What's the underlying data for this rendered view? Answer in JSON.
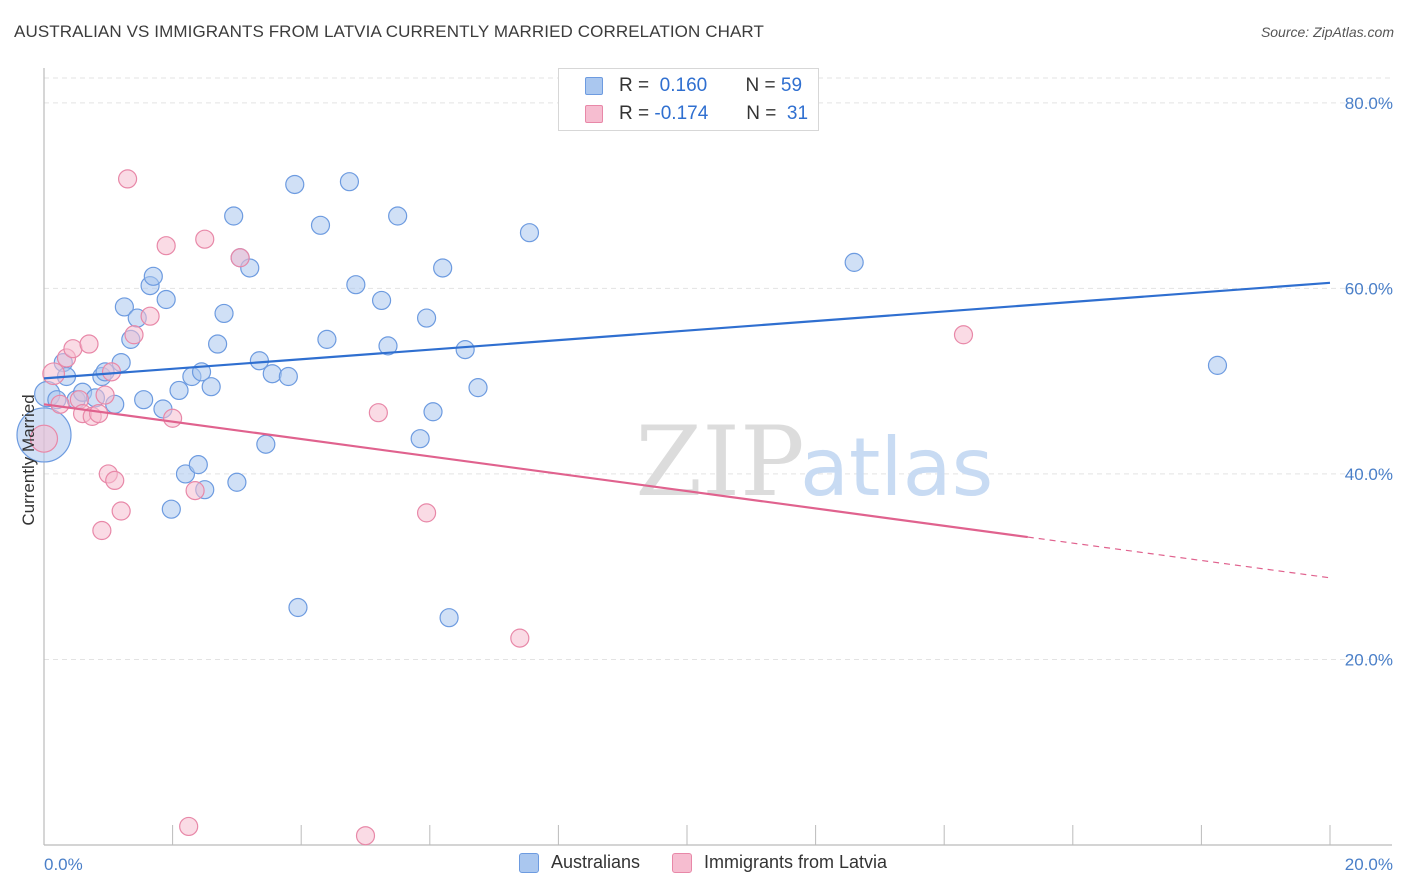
{
  "header": {
    "title": "AUSTRALIAN VS IMMIGRANTS FROM LATVIA CURRENTLY MARRIED CORRELATION CHART",
    "source": "Source: ZipAtlas.com"
  },
  "legend": {
    "series": [
      {
        "r_label": "R =",
        "r_value": "0.160",
        "n_label": "N =",
        "n_value": "59"
      },
      {
        "r_label": "R =",
        "r_value": "-0.174",
        "n_label": "N =",
        "n_value": "31"
      }
    ]
  },
  "bottom_legend": {
    "items": [
      {
        "label": "Australians"
      },
      {
        "label": "Immigrants from Latvia"
      }
    ]
  },
  "watermark": {
    "part1": "ZIP",
    "part2": "atlas"
  },
  "colors": {
    "blue_fill": "#aac7ef",
    "blue_stroke": "#6d9be0",
    "blue_line": "#2f6fd0",
    "pink_fill": "#f6bdd0",
    "pink_stroke": "#e888a8",
    "pink_line": "#e0628e",
    "tick_text": "#4a7fc8",
    "grid": "#e3e3e3"
  },
  "chart_data": {
    "type": "scatter",
    "title": "AUSTRALIAN VS IMMIGRANTS FROM LATVIA CURRENTLY MARRIED CORRELATION CHART",
    "xlabel": "",
    "ylabel": "Currently Married",
    "xlim": [
      0,
      20
    ],
    "ylim": [
      0,
      83
    ],
    "x_tick_labels": [
      "0.0%",
      "20.0%"
    ],
    "y_ticks": [
      20,
      40,
      60,
      80
    ],
    "y_tick_labels": [
      "20.0%",
      "40.0%",
      "60.0%",
      "80.0%"
    ],
    "grid": true,
    "legend_position": "top-center",
    "series": [
      {
        "name": "Australians",
        "color": "#aac7ef",
        "r": 0.16,
        "n": 59,
        "trend": {
          "x": [
            0,
            20
          ],
          "y": [
            50.3,
            60.6
          ],
          "dashed_from": null
        },
        "points": [
          [
            0.0,
            44.2,
            3
          ],
          [
            0.05,
            48.6,
            1.4
          ],
          [
            0.2,
            48.0,
            1
          ],
          [
            0.3,
            52.0,
            1
          ],
          [
            0.35,
            50.5,
            1
          ],
          [
            0.5,
            48.0,
            1
          ],
          [
            0.6,
            48.8,
            1
          ],
          [
            0.8,
            48.2,
            1
          ],
          [
            0.9,
            50.5,
            1
          ],
          [
            0.95,
            51.0,
            1
          ],
          [
            1.1,
            47.5,
            1
          ],
          [
            1.2,
            52.0,
            1
          ],
          [
            1.25,
            58.0,
            1
          ],
          [
            1.35,
            54.5,
            1
          ],
          [
            1.45,
            56.8,
            1
          ],
          [
            1.55,
            48.0,
            1
          ],
          [
            1.65,
            60.3,
            1
          ],
          [
            1.7,
            61.3,
            1
          ],
          [
            1.85,
            47.0,
            1
          ],
          [
            1.9,
            58.8,
            1
          ],
          [
            1.98,
            36.2,
            1
          ],
          [
            2.1,
            49.0,
            1
          ],
          [
            2.2,
            40.0,
            1
          ],
          [
            2.3,
            50.5,
            1
          ],
          [
            2.4,
            41.0,
            1
          ],
          [
            2.45,
            51.0,
            1
          ],
          [
            2.5,
            38.3,
            1
          ],
          [
            2.6,
            49.4,
            1
          ],
          [
            2.7,
            54.0,
            1
          ],
          [
            2.8,
            57.3,
            1
          ],
          [
            2.95,
            67.8,
            1
          ],
          [
            3.0,
            39.1,
            1
          ],
          [
            3.05,
            63.3,
            1
          ],
          [
            3.2,
            62.2,
            1
          ],
          [
            3.35,
            52.2,
            1
          ],
          [
            3.45,
            43.2,
            1
          ],
          [
            3.55,
            50.8,
            1
          ],
          [
            3.8,
            50.5,
            1
          ],
          [
            3.9,
            71.2,
            1
          ],
          [
            3.95,
            25.6,
            1
          ],
          [
            4.3,
            66.8,
            1
          ],
          [
            4.4,
            54.5,
            1
          ],
          [
            4.75,
            71.5,
            1
          ],
          [
            4.85,
            60.4,
            1
          ],
          [
            5.25,
            58.7,
            1
          ],
          [
            5.35,
            53.8,
            1
          ],
          [
            5.5,
            67.8,
            1
          ],
          [
            5.85,
            43.8,
            1
          ],
          [
            5.95,
            56.8,
            1
          ],
          [
            6.05,
            46.7,
            1
          ],
          [
            6.2,
            62.2,
            1
          ],
          [
            6.3,
            24.5,
            1
          ],
          [
            6.55,
            53.4,
            1
          ],
          [
            6.75,
            49.3,
            1
          ],
          [
            7.55,
            66.0,
            1
          ],
          [
            12.6,
            62.8,
            1
          ],
          [
            18.25,
            51.7,
            1
          ]
        ]
      },
      {
        "name": "Immigrants from Latvia",
        "color": "#f6bdd0",
        "r": -0.174,
        "n": 31,
        "trend": {
          "x": [
            0,
            20
          ],
          "y": [
            47.5,
            28.8
          ],
          "dashed_from": 15.3
        },
        "points": [
          [
            0.0,
            43.8,
            1.5
          ],
          [
            0.15,
            50.8,
            1.2
          ],
          [
            0.25,
            47.5,
            1
          ],
          [
            0.35,
            52.5,
            1
          ],
          [
            0.45,
            53.5,
            1
          ],
          [
            0.55,
            48.0,
            1
          ],
          [
            0.6,
            46.5,
            1
          ],
          [
            0.7,
            54.0,
            1
          ],
          [
            0.75,
            46.2,
            1
          ],
          [
            0.85,
            46.5,
            1
          ],
          [
            0.9,
            33.9,
            1
          ],
          [
            0.95,
            48.5,
            1
          ],
          [
            1.0,
            40.0,
            1
          ],
          [
            1.05,
            51.0,
            1
          ],
          [
            1.1,
            39.3,
            1
          ],
          [
            1.2,
            36.0,
            1
          ],
          [
            1.3,
            71.8,
            1
          ],
          [
            1.4,
            55.0,
            1
          ],
          [
            1.65,
            57.0,
            1
          ],
          [
            1.9,
            64.6,
            1
          ],
          [
            2.0,
            46.0,
            1
          ],
          [
            2.25,
            2.0,
            1
          ],
          [
            2.35,
            38.2,
            1
          ],
          [
            2.5,
            65.3,
            1
          ],
          [
            3.05,
            63.3,
            1
          ],
          [
            5.0,
            1.0,
            1
          ],
          [
            5.2,
            46.6,
            1
          ],
          [
            5.95,
            35.8,
            1
          ],
          [
            7.4,
            22.3,
            1
          ],
          [
            14.3,
            55.0,
            1
          ]
        ]
      }
    ]
  }
}
